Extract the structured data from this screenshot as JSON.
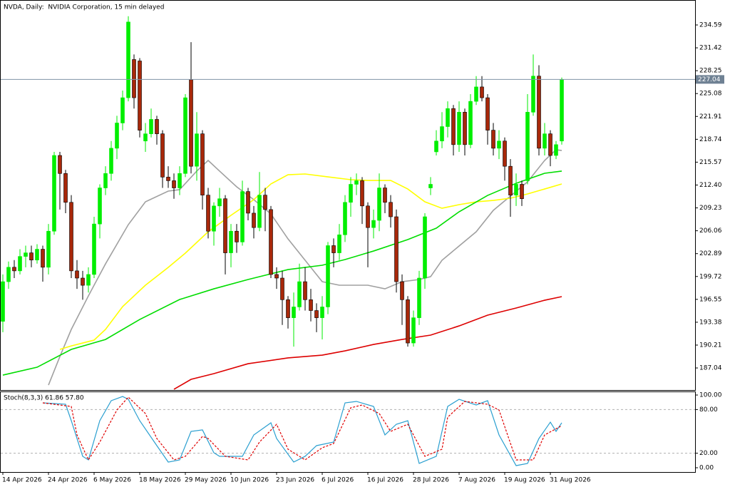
{
  "chart_data": [
    {
      "type": "candlestick",
      "title": "NVDA, Daily:  NVIDIA Corporation, 15 min delayed",
      "categories": [
        "14 Apr 2026",
        null,
        null,
        null,
        null,
        null,
        null,
        null,
        "24 Apr 2026",
        null,
        null,
        null,
        null,
        null,
        null,
        null,
        "6 May 2026",
        null,
        null,
        null,
        null,
        null,
        null,
        null,
        "18 May 2026",
        null,
        null,
        null,
        null,
        null,
        null,
        null,
        "29 May 2026",
        null,
        null,
        null,
        null,
        null,
        null,
        null,
        "10 Jun 2026",
        null,
        null,
        null,
        null,
        null,
        null,
        null,
        "23 Jun 2026",
        null,
        null,
        null,
        null,
        null,
        null,
        null,
        "6 Jul 2026",
        null,
        null,
        null,
        null,
        null,
        null,
        null,
        "16 Jul 2026",
        null,
        null,
        null,
        null,
        null,
        null,
        null,
        "28 Jul 2026",
        null,
        null,
        null,
        null,
        null,
        null,
        null,
        "7 Aug 2026",
        null,
        null,
        null,
        null,
        null,
        null,
        null,
        "19 Aug 2026",
        null,
        null,
        null,
        null,
        null,
        null,
        null,
        "31 Aug 2026",
        null,
        null
      ],
      "open": [
        193.5,
        199,
        201,
        200.5,
        202.5,
        203,
        202,
        203.5,
        201,
        206,
        216.5,
        214,
        210,
        200.5,
        199.5,
        198.5,
        200,
        207,
        212,
        214,
        217.5,
        221,
        224.5,
        229.8,
        229.6,
        218.5,
        219.5,
        221.5,
        219.5,
        213.5,
        213,
        212,
        214,
        227,
        215,
        219.5,
        211,
        206,
        209.5,
        210.5,
        203,
        206,
        204.5,
        211.5,
        208.5,
        206.5,
        211,
        209,
        200,
        199.5,
        196.5,
        194,
        195.5,
        199,
        196.5,
        195,
        194,
        195.5,
        204,
        203,
        205.5,
        210,
        212.5,
        213,
        209.5,
        206.5,
        207.5,
        212,
        210,
        208,
        199,
        196.5,
        190.5,
        194,
        199.5,
        212,
        217,
        218.5,
        220.5,
        223,
        218,
        222.5,
        218,
        224,
        226,
        224.5,
        220,
        217.5,
        218.5,
        215,
        211,
        212.5,
        213,
        222.5,
        227.5,
        217.5,
        219.5,
        216.5,
        218.5
      ],
      "high": [
        200,
        201.8,
        202,
        203.5,
        204,
        204,
        204.2,
        204,
        207,
        217,
        217,
        214.5,
        211,
        202,
        200.5,
        201,
        208,
        212.5,
        215,
        218.5,
        222,
        225.5,
        235.8,
        230.5,
        230,
        221,
        223,
        222,
        220,
        215,
        214,
        215,
        225,
        232.2,
        222.5,
        220,
        212,
        210,
        212,
        211,
        207,
        207,
        213,
        212,
        209.5,
        214.2,
        212,
        209.5,
        201,
        200.5,
        197,
        197.5,
        201.5,
        201,
        198,
        196,
        197,
        204.5,
        205,
        207,
        211,
        213.5,
        214,
        213.5,
        210,
        209,
        214,
        212.5,
        211,
        209,
        200,
        197,
        195,
        200.5,
        208.5,
        213.5,
        220,
        222.5,
        224,
        223.5,
        224,
        223,
        225,
        227.5,
        227.5,
        225,
        221,
        220,
        219,
        216,
        214,
        213,
        225,
        230.5,
        229,
        221,
        220,
        218.5,
        227.3
      ],
      "low": [
        192,
        198,
        199.5,
        200,
        201,
        201,
        201.5,
        199,
        200,
        205.5,
        209,
        208.5,
        199.5,
        198,
        196.5,
        197.5,
        199.5,
        205,
        211,
        213,
        216,
        220,
        224,
        223,
        219,
        217,
        219,
        218,
        212,
        212,
        210.5,
        211,
        213.5,
        214,
        213,
        209,
        205,
        204,
        208,
        200,
        201,
        203,
        204,
        207.5,
        205,
        206,
        206,
        199.5,
        198,
        193,
        192.5,
        190,
        195,
        195,
        193.5,
        192,
        191,
        194.5,
        201,
        202,
        204.5,
        208,
        211,
        207,
        201,
        205,
        206,
        208.5,
        206.5,
        197.5,
        193,
        190,
        190,
        193,
        198,
        211,
        216.5,
        217.5,
        219,
        216.5,
        217,
        216.5,
        217.5,
        223.5,
        224,
        218,
        216.5,
        216,
        213,
        208,
        209.5,
        209.5,
        212.5,
        222,
        216.5,
        216.5,
        215,
        216,
        218
      ],
      "close": [
        199,
        201,
        200.5,
        202.5,
        203,
        202,
        203.5,
        201,
        206,
        216.5,
        214,
        210,
        200.5,
        199.5,
        198.5,
        200,
        207,
        212,
        214,
        217.5,
        221,
        224.5,
        235,
        224.5,
        220,
        219.5,
        221.5,
        219.5,
        213.5,
        213,
        212,
        214,
        224.5,
        215,
        219.5,
        211,
        206,
        209.5,
        210.5,
        203,
        206,
        204.5,
        211.5,
        208.5,
        206.5,
        211,
        209,
        200,
        199.5,
        196.5,
        194,
        195.5,
        199,
        196.5,
        195,
        194,
        195.5,
        204,
        203,
        205.5,
        210,
        212.5,
        213,
        209.5,
        206.5,
        207.5,
        212,
        210,
        208,
        199,
        196.5,
        190.5,
        194,
        199.5,
        208,
        212.5,
        218.5,
        220.5,
        223,
        218,
        222.5,
        218,
        224,
        226,
        224.5,
        220,
        217.5,
        218.5,
        215,
        211,
        212.5,
        210.5,
        222.5,
        227.5,
        217.5,
        219.5,
        216.5,
        218,
        227.04
      ],
      "up_color": "#00ee00",
      "down_color": "#a8280a",
      "lines": [
        {
          "color": "#a0a0a0",
          "x": [
            8,
            10,
            12,
            15,
            18,
            22,
            25,
            29,
            31,
            34,
            36,
            38,
            41,
            44,
            47,
            50,
            53,
            56,
            59,
            64,
            67,
            70,
            73,
            75,
            77,
            80,
            83,
            86,
            89,
            92,
            95,
            97,
            98
          ],
          "values": [
            184.67,
            188.62,
            192.38,
            197.03,
            201.47,
            206.91,
            210.07,
            211.56,
            211.76,
            214.33,
            215.81,
            214.33,
            212.15,
            210.37,
            208.39,
            204.93,
            201.97,
            199,
            198.51,
            198.51,
            198.01,
            199,
            199.3,
            199.69,
            201.97,
            203.95,
            205.92,
            208.89,
            210.87,
            212.84,
            215.81,
            217.29,
            217.19
          ]
        },
        {
          "color": "#ffff00",
          "x": [
            10,
            12,
            16,
            18,
            21,
            25,
            29,
            32,
            36,
            40,
            44,
            47,
            50,
            53,
            57,
            61,
            64,
            68,
            71,
            74,
            77,
            80,
            83,
            86,
            89,
            92,
            95,
            98
          ],
          "values": [
            189.61,
            190.1,
            190.9,
            192.38,
            195.54,
            198.51,
            200.98,
            202.96,
            205.92,
            208.2,
            210.37,
            212.55,
            213.83,
            213.93,
            213.53,
            213.14,
            213.04,
            213.04,
            211.85,
            210.07,
            209.18,
            209.68,
            210.07,
            210.27,
            210.57,
            211.16,
            211.85,
            212.55
          ]
        },
        {
          "color": "#00dd00",
          "x": [
            0,
            6,
            12,
            18,
            24,
            31,
            37,
            43,
            50,
            56,
            60,
            65,
            71,
            76,
            80,
            85,
            90,
            95,
            98
          ],
          "values": [
            186.05,
            187.14,
            189.61,
            190.99,
            193.76,
            196.53,
            198.01,
            199.3,
            200.68,
            201.28,
            202.07,
            203.25,
            204.84,
            206.42,
            208.69,
            210.96,
            212.64,
            214.03,
            214.33
          ]
        },
        {
          "color": "#dd0000",
          "x": [
            30,
            33,
            37,
            43,
            50,
            56,
            60,
            65,
            70,
            75,
            80,
            85,
            90,
            95,
            98
          ],
          "values": [
            184.08,
            185.46,
            186.25,
            187.63,
            188.43,
            188.82,
            189.41,
            190.3,
            190.99,
            191.59,
            192.87,
            194.36,
            195.35,
            196.43,
            196.93
          ]
        }
      ],
      "last_price": 227.04,
      "ylim": [
        183.98,
        238.05
      ],
      "yticks": [
        234.59,
        231.42,
        228.25,
        225.08,
        221.91,
        218.74,
        215.57,
        {
          "value": 212.4,
          "label": "212.40"
        },
        209.23,
        206.06,
        202.89,
        199.72,
        196.55,
        193.38,
        190.21,
        187.04
      ]
    },
    {
      "type": "line",
      "title": "Stoch(8,3,3) 61.86 57.80",
      "ylim": [
        -5.9,
        104.9
      ],
      "yticks": [
        {
          "value": 100,
          "label": "100.00"
        },
        {
          "value": 80,
          "label": "80.00"
        },
        {
          "value": 20,
          "label": "20.00"
        },
        {
          "value": 0,
          "label": "0.00"
        }
      ],
      "levels": [
        80,
        20
      ],
      "series": [
        {
          "color": "#2a9fd0",
          "dashed": false,
          "x": [
            7,
            11,
            12,
            14,
            15,
            17,
            19,
            21,
            22,
            24,
            27,
            29,
            31,
            33,
            35,
            37,
            38,
            42,
            44,
            47,
            48,
            51,
            53,
            55,
            58,
            60,
            62,
            65,
            67,
            69,
            71,
            73,
            76,
            78,
            80,
            83,
            85,
            87,
            90,
            92,
            94,
            96,
            97,
            98
          ],
          "values": [
            89.2,
            87.3,
            64.7,
            15.7,
            10.8,
            64.7,
            92.2,
            98,
            94.1,
            64.7,
            30.4,
            7.8,
            10.8,
            50,
            52,
            20.6,
            15.7,
            15.7,
            45.1,
            61.8,
            40.2,
            7.8,
            15.7,
            30.4,
            35.3,
            89.2,
            91.2,
            84.3,
            45.1,
            59.8,
            64.7,
            5.9,
            15.7,
            84.3,
            94.1,
            86.3,
            92.2,
            45.1,
            2.9,
            5.9,
            40.2,
            62.7,
            50,
            61.86
          ]
        },
        {
          "color": "#e00000",
          "dashed": true,
          "x": [
            7,
            12,
            13,
            15,
            17,
            20,
            22,
            25,
            27,
            30,
            32,
            35,
            36,
            39,
            43,
            45,
            48,
            50,
            53,
            56,
            58,
            61,
            63,
            66,
            68,
            71,
            74,
            77,
            78,
            81,
            85,
            87,
            90,
            93,
            95,
            98
          ],
          "values": [
            89.2,
            84.3,
            45.1,
            10.8,
            35.3,
            79.4,
            97.1,
            74.5,
            40.2,
            10.8,
            15.7,
            43.1,
            40.2,
            15.7,
            10.8,
            35.3,
            59.8,
            25.5,
            10.8,
            27.5,
            33.3,
            82.4,
            86.3,
            74.5,
            50,
            59.8,
            15.7,
            25.5,
            69.6,
            91.2,
            87.3,
            79.4,
            10.8,
            10.8,
            45.1,
            57.8
          ]
        }
      ]
    }
  ]
}
